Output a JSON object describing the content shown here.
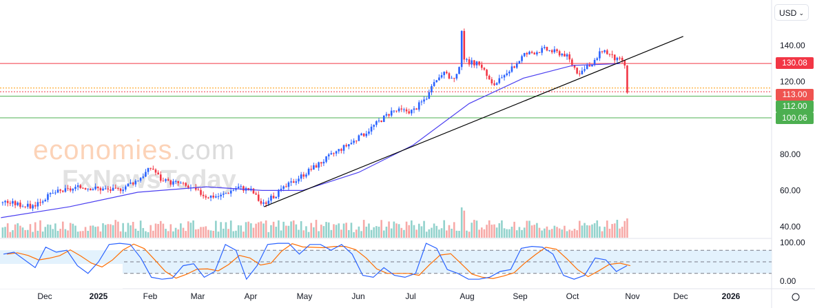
{
  "currency_select": "USD",
  "watermark": {
    "brand1": "economies",
    "brand1_suffix": ".com",
    "brand2": "FxNewsToday"
  },
  "price_axis": [
    "140.00",
    "120.00",
    "80.00",
    "60.00",
    "40.00"
  ],
  "stoch_axis": [
    "100.00",
    "0.00"
  ],
  "time_axis": [
    "Dec",
    "2025",
    "Feb",
    "Mar",
    "Apr",
    "May",
    "Jun",
    "Jul",
    "Aug",
    "Sep",
    "Oct",
    "Nov",
    "Dec",
    "2026"
  ],
  "price_tags": [
    {
      "label": "130.08",
      "value": 130.08,
      "color": "#f23645"
    },
    {
      "label": "113.00",
      "value": 113.0,
      "color": "#ef5350"
    },
    {
      "label": "112.00",
      "value": 112.0,
      "color": "#4caf50"
    },
    {
      "label": "100.06",
      "value": 100.06,
      "color": "#4caf50"
    }
  ],
  "chart_data": {
    "type": "candlestick",
    "ylim": [
      40,
      150
    ],
    "x_unit": "days since 2024-12-01",
    "close_path": [
      [
        -24,
        54
      ],
      [
        -8,
        51
      ],
      [
        6,
        59
      ],
      [
        22,
        62
      ],
      [
        41,
        60
      ],
      [
        53,
        66
      ],
      [
        61,
        73
      ],
      [
        67,
        65
      ],
      [
        77,
        64
      ],
      [
        92,
        57
      ],
      [
        100,
        57
      ],
      [
        110,
        62
      ],
      [
        118,
        60
      ],
      [
        124,
        52
      ],
      [
        132,
        58
      ],
      [
        143,
        66
      ],
      [
        155,
        74
      ],
      [
        167,
        82
      ],
      [
        179,
        89
      ],
      [
        189,
        97
      ],
      [
        198,
        104
      ],
      [
        210,
        104
      ],
      [
        218,
        112
      ],
      [
        226,
        125
      ],
      [
        234,
        121
      ],
      [
        238,
        131
      ],
      [
        242,
        131
      ],
      [
        249,
        129
      ],
      [
        255,
        118
      ],
      [
        263,
        123
      ],
      [
        273,
        135
      ],
      [
        285,
        138
      ],
      [
        297,
        135
      ],
      [
        304,
        125
      ],
      [
        312,
        129
      ],
      [
        318,
        138
      ],
      [
        326,
        132
      ],
      [
        330,
        132
      ],
      [
        333,
        114
      ]
    ],
    "moving_average": [
      [
        -25,
        45
      ],
      [
        14,
        51
      ],
      [
        53,
        59
      ],
      [
        92,
        62
      ],
      [
        124,
        60
      ],
      [
        147,
        60
      ],
      [
        179,
        70
      ],
      [
        210,
        85
      ],
      [
        242,
        108
      ],
      [
        273,
        122
      ],
      [
        301,
        129
      ],
      [
        328,
        130
      ]
    ],
    "trendline": [
      [
        125,
        51
      ],
      [
        364,
        145
      ]
    ],
    "horizontal_levels": [
      {
        "value": 130.08,
        "style": "solid",
        "color": "#f23645"
      },
      {
        "value": 116.5,
        "style": "dotted",
        "color": "#ff9800"
      },
      {
        "value": 114.5,
        "style": "dotted",
        "color": "#f23645"
      },
      {
        "value": 112,
        "style": "solid",
        "color": "#4caf50"
      },
      {
        "value": 100.06,
        "style": "solid",
        "color": "#4caf50"
      }
    ],
    "stochastic_k": [
      70,
      75,
      55,
      35,
      88,
      75,
      80,
      40,
      20,
      50,
      95,
      98,
      95,
      60,
      10,
      5,
      8,
      40,
      45,
      10,
      25,
      95,
      80,
      5,
      40,
      95,
      98,
      98,
      70,
      95,
      95,
      80,
      95,
      70,
      15,
      10,
      35,
      15,
      10,
      20,
      98,
      85,
      30,
      20,
      5,
      5,
      10,
      25,
      30,
      85,
      90,
      88,
      70,
      15,
      5,
      15,
      60,
      55,
      25,
      40
    ],
    "stochastic_levels": [
      80,
      50,
      20
    ]
  }
}
